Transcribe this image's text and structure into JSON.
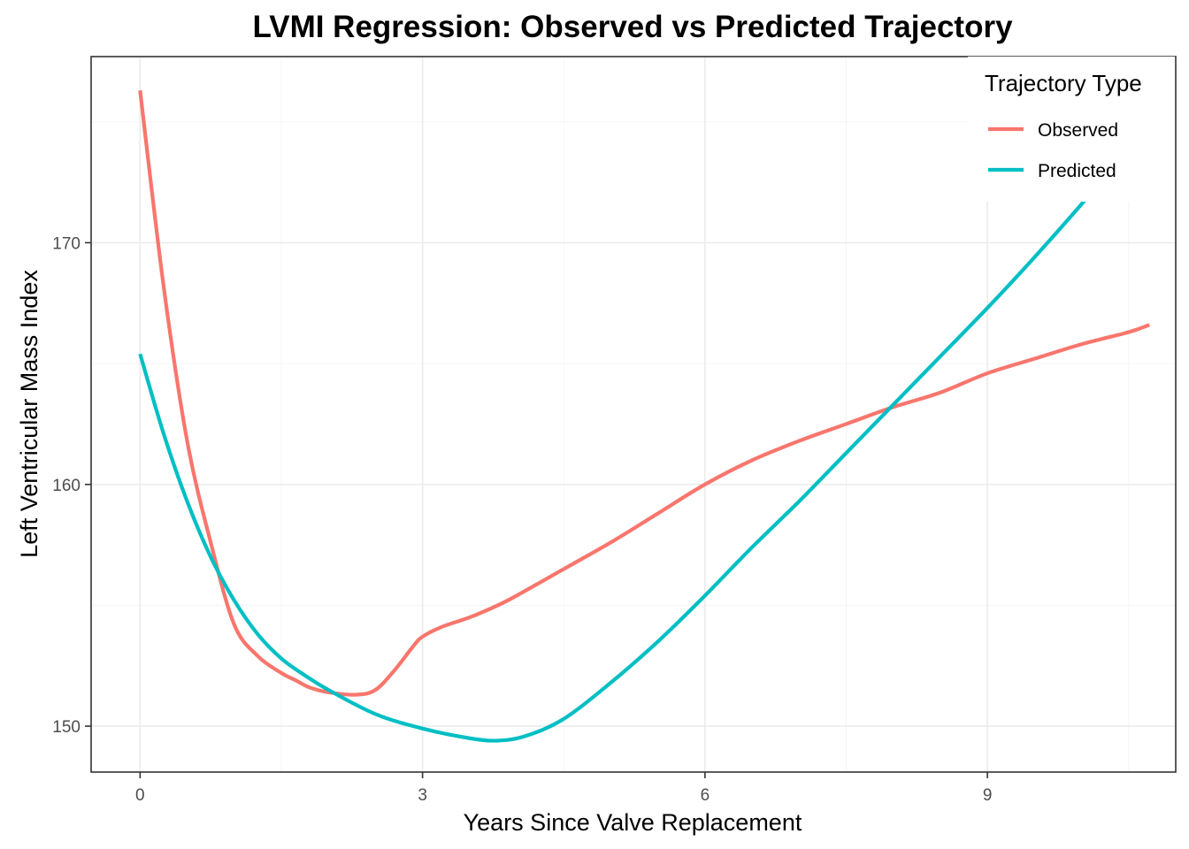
{
  "chart_data": {
    "type": "line",
    "title": "LVMI Regression: Observed vs Predicted Trajectory",
    "xlabel": "Years Since Valve Replacement",
    "ylabel": "Left Ventricular Mass Index",
    "xlim": [
      -0.52,
      11.0
    ],
    "ylim": [
      148.1,
      177.7
    ],
    "x_ticks": [
      0,
      3,
      6,
      9
    ],
    "x_tick_labels": [
      "0",
      "3",
      "6",
      "9"
    ],
    "x_minor_ticks": [
      1.5,
      4.5,
      7.5,
      10.5
    ],
    "y_ticks": [
      150,
      160,
      170
    ],
    "y_tick_labels": [
      "150",
      "160",
      "170"
    ],
    "y_minor_ticks": [
      155,
      165,
      175
    ],
    "grid": true,
    "legend": {
      "title": "Trajectory Type",
      "position": "top-right"
    },
    "series": [
      {
        "name": "Observed",
        "color": "#F8766D",
        "x": [
          0,
          0.25,
          0.5,
          0.75,
          1.0,
          1.25,
          1.5,
          1.65,
          1.8,
          2.0,
          2.3,
          2.5,
          2.7,
          2.9,
          3.0,
          3.2,
          3.5,
          3.8,
          4.0,
          4.5,
          5.0,
          5.5,
          6.0,
          6.5,
          7.0,
          7.5,
          8.0,
          8.5,
          9.0,
          9.5,
          10.0,
          10.5,
          10.72
        ],
        "y": [
          176.3,
          168.2,
          161.8,
          157.6,
          154.2,
          152.9,
          152.2,
          151.9,
          151.6,
          151.4,
          151.3,
          151.5,
          152.3,
          153.3,
          153.7,
          154.1,
          154.5,
          155.0,
          155.4,
          156.5,
          157.6,
          158.8,
          160.0,
          161.0,
          161.8,
          162.5,
          163.2,
          163.8,
          164.6,
          165.2,
          165.8,
          166.3,
          166.6
        ]
      },
      {
        "name": "Predicted",
        "color": "#00BFC4",
        "x": [
          0,
          0.25,
          0.5,
          0.75,
          1.0,
          1.25,
          1.5,
          1.75,
          2.0,
          2.5,
          3.0,
          3.5,
          3.8,
          4.1,
          4.5,
          5.0,
          5.5,
          6.0,
          6.5,
          7.0,
          7.5,
          8.0,
          8.5,
          9.0,
          9.5,
          10.0,
          10.12
        ],
        "y": [
          165.4,
          162.1,
          159.3,
          157.0,
          155.2,
          153.8,
          152.8,
          152.1,
          151.5,
          150.5,
          149.9,
          149.5,
          149.4,
          149.6,
          150.3,
          151.8,
          153.5,
          155.4,
          157.4,
          159.3,
          161.3,
          163.3,
          165.3,
          167.3,
          169.4,
          171.6,
          172.2
        ]
      }
    ]
  }
}
